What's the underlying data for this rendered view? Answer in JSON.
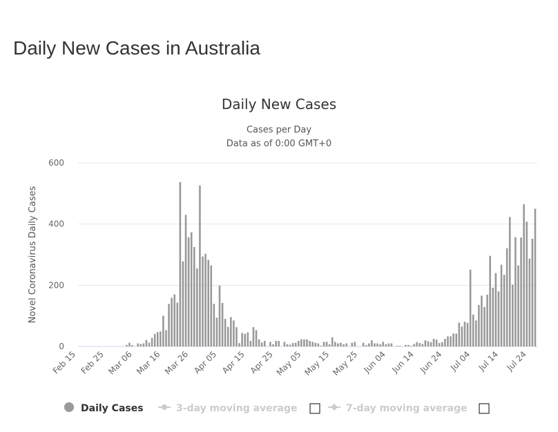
{
  "page": {
    "title": "Daily New Cases in Australia"
  },
  "chart_data": {
    "type": "bar",
    "title": "Daily New Cases",
    "subtitle": [
      "Cases per Day",
      "Data as of 0:00 GMT+0"
    ],
    "xlabel": "",
    "ylabel": "Novel Coronavirus Daily Cases",
    "ylim": [
      0,
      600
    ],
    "yticks": [
      0,
      200,
      400,
      600
    ],
    "xtick_labels": [
      "Feb 15",
      "Feb 25",
      "Mar 06",
      "Mar 16",
      "Mar 26",
      "Apr 05",
      "Apr 15",
      "Apr 25",
      "May 05",
      "May 15",
      "May 25",
      "Jun 04",
      "Jun 14",
      "Jun 24",
      "Jul 04",
      "Jul 14",
      "Jul 24"
    ],
    "grid": true,
    "legend_position": "bottom",
    "bar_color": "#999999",
    "x": [
      "Feb 15",
      "Feb 16",
      "Feb 17",
      "Feb 18",
      "Feb 19",
      "Feb 20",
      "Feb 21",
      "Feb 22",
      "Feb 23",
      "Feb 24",
      "Feb 25",
      "Feb 26",
      "Feb 27",
      "Feb 28",
      "Feb 29",
      "Mar 01",
      "Mar 02",
      "Mar 03",
      "Mar 04",
      "Mar 05",
      "Mar 06",
      "Mar 07",
      "Mar 08",
      "Mar 09",
      "Mar 10",
      "Mar 11",
      "Mar 12",
      "Mar 13",
      "Mar 14",
      "Mar 15",
      "Mar 16",
      "Mar 17",
      "Mar 18",
      "Mar 19",
      "Mar 20",
      "Mar 21",
      "Mar 22",
      "Mar 23",
      "Mar 24",
      "Mar 25",
      "Mar 26",
      "Mar 27",
      "Mar 28",
      "Mar 29",
      "Mar 30",
      "Mar 31",
      "Apr 01",
      "Apr 02",
      "Apr 03",
      "Apr 04",
      "Apr 05",
      "Apr 06",
      "Apr 07",
      "Apr 08",
      "Apr 09",
      "Apr 10",
      "Apr 11",
      "Apr 12",
      "Apr 13",
      "Apr 14",
      "Apr 15",
      "Apr 16",
      "Apr 17",
      "Apr 18",
      "Apr 19",
      "Apr 20",
      "Apr 21",
      "Apr 22",
      "Apr 23",
      "Apr 24",
      "Apr 25",
      "Apr 26",
      "Apr 27",
      "Apr 28",
      "Apr 29",
      "Apr 30",
      "May 01",
      "May 02",
      "May 03",
      "May 04",
      "May 05",
      "May 06",
      "May 07",
      "May 08",
      "May 09",
      "May 10",
      "May 11",
      "May 12",
      "May 13",
      "May 14",
      "May 15",
      "May 16",
      "May 17",
      "May 18",
      "May 19",
      "May 20",
      "May 21",
      "May 22",
      "May 23",
      "May 24",
      "May 25",
      "May 26",
      "May 27",
      "May 28",
      "May 29",
      "May 30",
      "May 31",
      "Jun 01",
      "Jun 02",
      "Jun 03",
      "Jun 04",
      "Jun 05",
      "Jun 06",
      "Jun 07",
      "Jun 08",
      "Jun 09",
      "Jun 10",
      "Jun 11",
      "Jun 12",
      "Jun 13",
      "Jun 14",
      "Jun 15",
      "Jun 16",
      "Jun 17",
      "Jun 18",
      "Jun 19",
      "Jun 20",
      "Jun 21",
      "Jun 22",
      "Jun 23",
      "Jun 24",
      "Jun 25",
      "Jun 26",
      "Jun 27",
      "Jun 28",
      "Jun 29",
      "Jun 30",
      "Jul 01",
      "Jul 02",
      "Jul 03",
      "Jul 04",
      "Jul 05",
      "Jul 06",
      "Jul 07",
      "Jul 08",
      "Jul 09",
      "Jul 10",
      "Jul 11",
      "Jul 12",
      "Jul 13",
      "Jul 14",
      "Jul 15",
      "Jul 16",
      "Jul 17",
      "Jul 18",
      "Jul 19",
      "Jul 20",
      "Jul 21",
      "Jul 22",
      "Jul 23",
      "Jul 24",
      "Jul 25",
      "Jul 26"
    ],
    "series": [
      {
        "name": "Daily Cases",
        "values": [
          0,
          0,
          0,
          0,
          0,
          0,
          0,
          0,
          0,
          0,
          0,
          0,
          0,
          0,
          0,
          0,
          0,
          5,
          12,
          4,
          0,
          10,
          8,
          10,
          21,
          12,
          28,
          41,
          47,
          49,
          100,
          53,
          139,
          159,
          170,
          143,
          537,
          278,
          430,
          357,
          373,
          325,
          255,
          526,
          294,
          303,
          283,
          265,
          139,
          94,
          199,
          142,
          90,
          64,
          96,
          85,
          63,
          11,
          44,
          41,
          46,
          18,
          63,
          53,
          23,
          13,
          18,
          0,
          15,
          7,
          18,
          18,
          0,
          15,
          7,
          6,
          11,
          12,
          18,
          23,
          23,
          23,
          18,
          15,
          12,
          10,
          2,
          15,
          15,
          7,
          30,
          15,
          10,
          12,
          7,
          10,
          0,
          12,
          15,
          0,
          0,
          12,
          4,
          10,
          20,
          10,
          10,
          7,
          15,
          7,
          10,
          10,
          0,
          2,
          2,
          0,
          5,
          5,
          2,
          8,
          14,
          11,
          8,
          20,
          17,
          14,
          25,
          22,
          11,
          14,
          25,
          33,
          33,
          42,
          42,
          78,
          65,
          81,
          77,
          251,
          104,
          85,
          135,
          166,
          129,
          169,
          296,
          192,
          240,
          180,
          267,
          234,
          321,
          423,
          202,
          357,
          265,
          356,
          465,
          408,
          287,
          352,
          450
        ]
      }
    ],
    "legend": [
      {
        "label": "Daily Cases",
        "active": true,
        "color": "#999999"
      },
      {
        "label": "3-day moving average",
        "active": false,
        "color": "#cccccc"
      },
      {
        "label": "7-day moving average",
        "active": false,
        "color": "#cccccc"
      }
    ]
  }
}
